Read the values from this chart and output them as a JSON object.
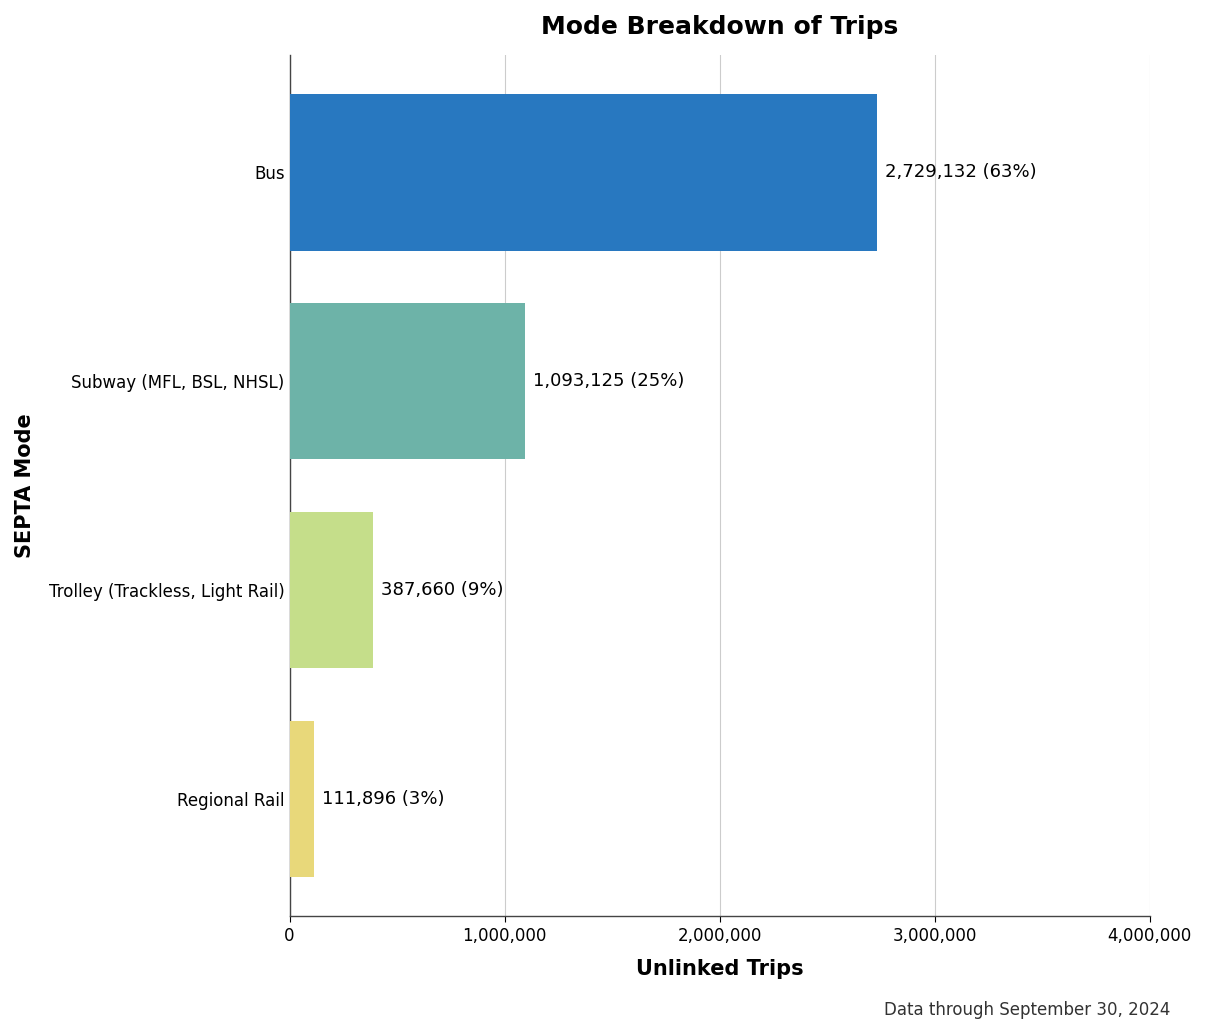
{
  "title": "Mode Breakdown of Trips",
  "categories": [
    "Regional Rail",
    "Trolley (Trackless, Light Rail)",
    "Subway (MFL, BSL, NHSL)",
    "Bus"
  ],
  "values": [
    111896,
    387660,
    1093125,
    2729132
  ],
  "labels": [
    "111,896 (3%)",
    "387,660 (9%)",
    "1,093,125 (25%)",
    "2,729,132 (63%)"
  ],
  "bar_colors": [
    "#e8d87a",
    "#c5de8a",
    "#6db3a8",
    "#2878c0"
  ],
  "xlabel": "Unlinked Trips",
  "ylabel": "SEPTA Mode",
  "xlim": [
    0,
    4000000
  ],
  "xticks": [
    0,
    1000000,
    2000000,
    3000000,
    4000000
  ],
  "xtick_labels": [
    "0",
    "1,000,000",
    "2,000,000",
    "3,000,000",
    "4,000,000"
  ],
  "caption": "Data through September 30, 2024",
  "background_color": "#ffffff",
  "plot_bg_color": "#ffffff",
  "title_fontsize": 18,
  "label_fontsize": 13,
  "tick_fontsize": 12,
  "xlabel_fontsize": 15,
  "ylabel_fontsize": 15,
  "caption_fontsize": 12,
  "bar_height": 0.75
}
